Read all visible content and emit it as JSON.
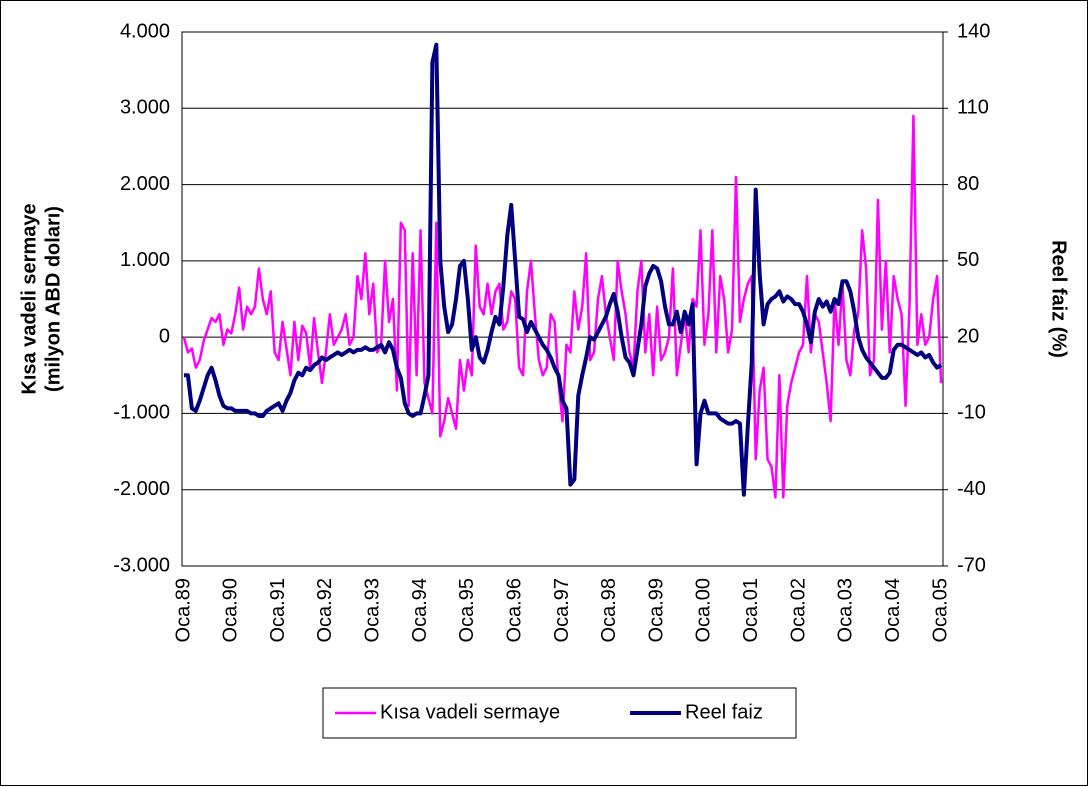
{
  "chart_data": {
    "type": "line",
    "ylabel": [
      "Kısa vadeli sermaye",
      "(milyon ABD doları)"
    ],
    "y2label": "Reel faiz (%)",
    "categories": [
      "Oca.89",
      null,
      null,
      null,
      null,
      null,
      null,
      null,
      null,
      null,
      null,
      null,
      "Oca.90",
      null,
      null,
      null,
      null,
      null,
      null,
      null,
      null,
      null,
      null,
      null,
      "Oca.91",
      null,
      null,
      null,
      null,
      null,
      null,
      null,
      null,
      null,
      null,
      null,
      "Oca.92",
      null,
      null,
      null,
      null,
      null,
      null,
      null,
      null,
      null,
      null,
      null,
      "Oca.93",
      null,
      null,
      null,
      null,
      null,
      null,
      null,
      null,
      null,
      null,
      null,
      "Oca.94",
      null,
      null,
      null,
      null,
      null,
      null,
      null,
      null,
      null,
      null,
      null,
      "Oca.95",
      null,
      null,
      null,
      null,
      null,
      null,
      null,
      null,
      null,
      null,
      null,
      "Oca.96",
      null,
      null,
      null,
      null,
      null,
      null,
      null,
      null,
      null,
      null,
      null,
      "Oca.97",
      null,
      null,
      null,
      null,
      null,
      null,
      null,
      null,
      null,
      null,
      null,
      "Oca.98",
      null,
      null,
      null,
      null,
      null,
      null,
      null,
      null,
      null,
      null,
      null,
      "Oca.99",
      null,
      null,
      null,
      null,
      null,
      null,
      null,
      null,
      null,
      null,
      null,
      "Oca.00",
      null,
      null,
      null,
      null,
      null,
      null,
      null,
      null,
      null,
      null,
      null,
      "Oca.01",
      null,
      null,
      null,
      null,
      null,
      null,
      null,
      null,
      null,
      null,
      null,
      "Oca.02",
      null,
      null,
      null,
      null,
      null,
      null,
      null,
      null,
      null,
      null,
      null,
      "Oca.03",
      null,
      null,
      null,
      null,
      null,
      null,
      null,
      null,
      null,
      null,
      null,
      "Oca.04",
      null,
      null,
      null,
      null,
      null,
      null,
      null,
      null,
      null,
      null,
      null,
      "Oca.05"
    ],
    "series": [
      {
        "name": "Kısa vadeli sermaye",
        "color": "#ff00ff",
        "axis": "y",
        "values": [
          0,
          -200,
          -150,
          -400,
          -300,
          -50,
          100,
          250,
          200,
          300,
          -100,
          100,
          50,
          300,
          650,
          100,
          400,
          300,
          400,
          900,
          500,
          300,
          600,
          -200,
          -300,
          200,
          -150,
          -500,
          200,
          -300,
          150,
          50,
          -400,
          250,
          -200,
          -600,
          -200,
          300,
          -100,
          0,
          100,
          300,
          -100,
          0,
          800,
          500,
          1100,
          300,
          700,
          -200,
          -100,
          1000,
          200,
          500,
          -700,
          1500,
          1400,
          -900,
          1100,
          -500,
          1400,
          -600,
          -800,
          -1000,
          1500,
          -1300,
          -1100,
          -800,
          -1000,
          -1200,
          -300,
          -700,
          -300,
          -500,
          1200,
          400,
          300,
          700,
          300,
          600,
          700,
          100,
          200,
          600,
          500,
          -400,
          -500,
          600,
          1000,
          300,
          -300,
          -500,
          -400,
          300,
          200,
          -600,
          -1100,
          -100,
          -200,
          600,
          100,
          400,
          1100,
          -300,
          -200,
          500,
          800,
          300,
          0,
          -300,
          1000,
          600,
          300,
          -200,
          -400,
          600,
          1000,
          -200,
          300,
          -500,
          400,
          -300,
          -200,
          0,
          900,
          -500,
          -100,
          300,
          -200,
          500,
          400,
          1400,
          -100,
          300,
          1400,
          -200,
          800,
          500,
          -200,
          100,
          2100,
          200,
          500,
          700,
          800,
          -1600,
          -700,
          -400,
          -1600,
          -1700,
          -2100,
          -500,
          -2100,
          -900,
          -600,
          -400,
          -200,
          -100,
          800,
          -200,
          300,
          200,
          -200,
          -600,
          -1100,
          500,
          -100,
          700,
          -300,
          -500,
          100,
          300,
          1400,
          900,
          -500,
          -300,
          1800,
          100,
          1000,
          -200,
          800,
          500,
          300,
          -900,
          400,
          2900,
          -100,
          300,
          -100,
          0,
          500,
          800,
          -600
        ]
      },
      {
        "name": "Reel faiz",
        "color": "#000080",
        "axis": "y2",
        "values": [
          5,
          5,
          -8,
          -9,
          -5,
          0,
          5,
          8,
          3,
          -3,
          -7,
          -8,
          -8,
          -9,
          -9,
          -9,
          -9,
          -10,
          -10,
          -11,
          -11,
          -9,
          -8,
          -7,
          -6,
          -9,
          -5,
          -2,
          3,
          6,
          5,
          8,
          7,
          9,
          10,
          12,
          11,
          12,
          13,
          14,
          13,
          14,
          15,
          14,
          15,
          15,
          16,
          15,
          15,
          16,
          17,
          14,
          18,
          15,
          8,
          4,
          -6,
          -10,
          -11,
          -10,
          -10,
          -3,
          5,
          128,
          135,
          50,
          32,
          22,
          25,
          35,
          48,
          50,
          35,
          15,
          20,
          12,
          10,
          15,
          22,
          28,
          25,
          40,
          60,
          72,
          50,
          28,
          27,
          22,
          26,
          23,
          20,
          17,
          15,
          12,
          8,
          5,
          -5,
          -8,
          -38,
          -36,
          -3,
          5,
          12,
          20,
          19,
          22,
          25,
          28,
          33,
          37,
          30,
          20,
          12,
          10,
          5,
          15,
          25,
          40,
          45,
          48,
          47,
          42,
          32,
          25,
          25,
          30,
          22,
          30,
          25,
          33,
          -30,
          -10,
          -5,
          -10,
          -10,
          -10,
          -12,
          -13,
          -14,
          -14,
          -13,
          -14,
          -42,
          -15,
          10,
          78,
          45,
          25,
          33,
          35,
          36,
          38,
          34,
          36,
          35,
          33,
          33,
          30,
          25,
          18,
          30,
          35,
          32,
          34,
          30,
          35,
          33,
          42,
          42,
          38,
          30,
          20,
          15,
          12,
          10,
          8,
          6,
          4,
          4,
          6,
          15,
          17,
          17,
          16,
          15,
          14,
          13,
          14,
          12,
          13,
          10,
          8,
          9
        ]
      }
    ],
    "ylim": [
      -3000,
      4000
    ],
    "yticks": [
      {
        "value": -3000,
        "label": "-3.000"
      },
      {
        "value": -2000,
        "label": "-2.000"
      },
      {
        "value": -1000,
        "label": "-1.000"
      },
      0,
      {
        "value": 1000,
        "label": "1.000"
      },
      {
        "value": 2000,
        "label": "2.000"
      },
      {
        "value": 3000,
        "label": "3.000"
      },
      {
        "value": 4000,
        "label": "4.000"
      }
    ],
    "y2lim": [
      -70,
      140
    ],
    "y2ticks": [
      -70,
      -40,
      -10,
      20,
      50,
      80,
      110,
      140
    ],
    "grid": true,
    "legend": "bottom"
  }
}
